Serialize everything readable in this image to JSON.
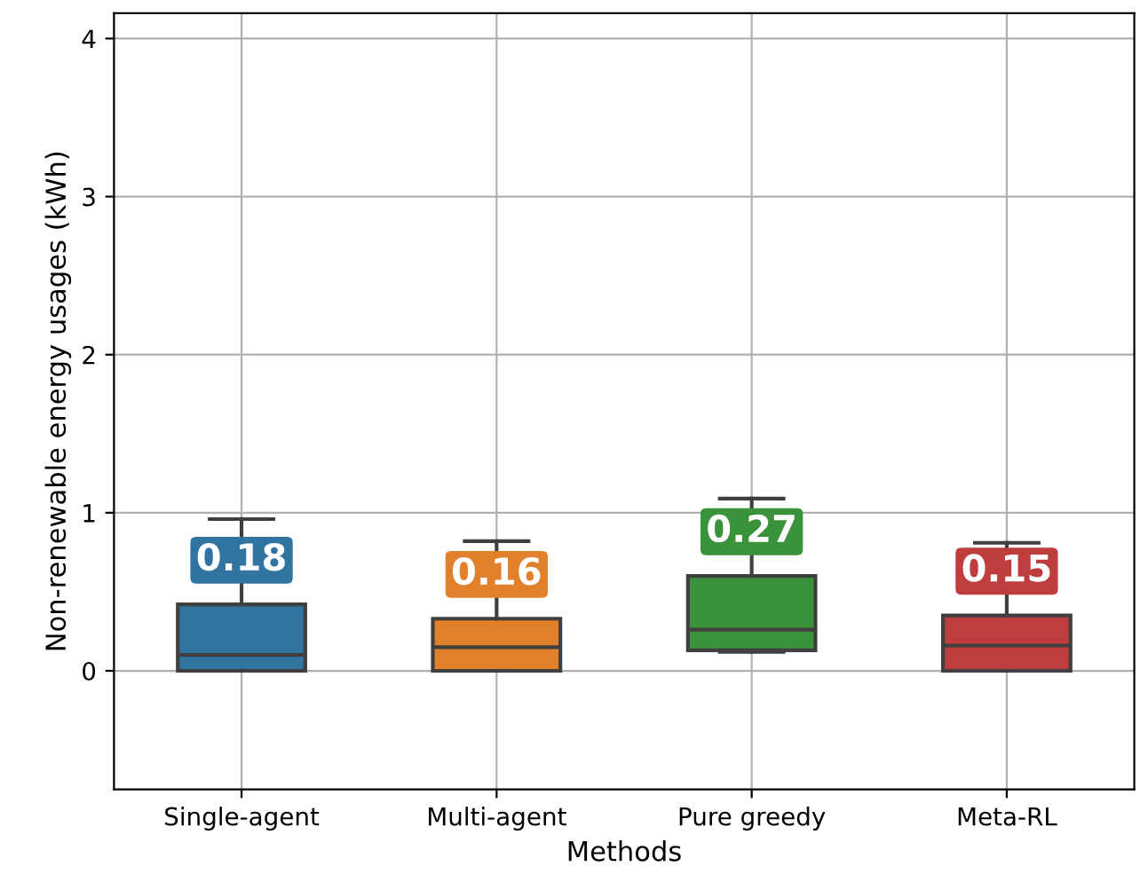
{
  "chart_data": {
    "type": "box",
    "xlabel": "Methods",
    "ylabel": "Non-renewable energy usages (kWh)",
    "categories": [
      "Single-agent",
      "Multi-agent",
      "Pure greedy",
      "Meta-RL"
    ],
    "colors": [
      "#3274a1",
      "#e1812c",
      "#3a923a",
      "#c03d3e"
    ],
    "boxes": [
      {
        "low": 0,
        "q1": 0,
        "median": 0.1,
        "q3": 0.42,
        "high": 0.96
      },
      {
        "low": 0,
        "q1": 0,
        "median": 0.15,
        "q3": 0.33,
        "high": 0.82
      },
      {
        "low": 0.12,
        "q1": 0.13,
        "median": 0.26,
        "q3": 0.6,
        "high": 1.09
      },
      {
        "low": 0,
        "q1": 0,
        "median": 0.16,
        "q3": 0.35,
        "high": 0.81
      }
    ],
    "annotations": [
      "0.18",
      "0.16",
      "0.27",
      "0.15"
    ],
    "ylim": [
      -0.75,
      4.16
    ],
    "yticks": [
      0,
      1,
      2,
      3,
      4
    ],
    "grid": true
  }
}
